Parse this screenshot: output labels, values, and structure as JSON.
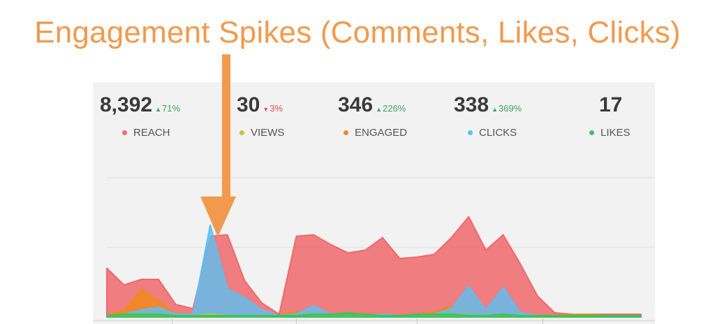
{
  "annotation": {
    "text": "Engagement Spikes (Comments, Likes, Clicks)",
    "color": "#F19A4E"
  },
  "stats": [
    {
      "value": "8,392",
      "change": "71%",
      "direction": "up",
      "label": "REACH",
      "color": "#F0696B"
    },
    {
      "value": "30",
      "change": "3%",
      "direction": "down",
      "label": "VIEWS",
      "color": "#C9C23A"
    },
    {
      "value": "346",
      "change": "226%",
      "direction": "up",
      "label": "ENGAGED",
      "color": "#F08A1C"
    },
    {
      "value": "338",
      "change": "369%",
      "direction": "up",
      "label": "CLICKS",
      "color": "#5BC0F2"
    },
    {
      "value": "17",
      "change": "",
      "direction": "",
      "label": "LIKES",
      "color": "#39C45A"
    }
  ],
  "chart_data": {
    "type": "area",
    "ylim": [
      0,
      100
    ],
    "grid": true,
    "x": [
      0,
      1,
      2,
      3,
      4,
      5,
      6,
      7,
      8,
      9,
      10,
      11,
      12,
      13,
      14,
      15,
      16,
      17,
      18,
      19,
      20,
      21,
      22,
      23,
      24,
      25,
      26,
      27,
      28,
      29,
      30,
      31
    ],
    "series": [
      {
        "name": "REACH",
        "color": "#F0696B",
        "values": [
          35,
          23,
          27,
          27,
          9,
          6,
          58,
          59,
          26,
          10,
          2,
          58,
          59,
          52,
          46,
          48,
          57,
          42,
          43,
          45,
          57,
          72,
          48,
          59,
          38,
          15,
          3,
          2,
          2,
          2,
          2,
          2
        ]
      },
      {
        "name": "ENGAGED",
        "color": "#F08A1C",
        "values": [
          1,
          5,
          20,
          12,
          2,
          1,
          3,
          2,
          1,
          1,
          1,
          4,
          3,
          2,
          2,
          2,
          1,
          1,
          2,
          3,
          8,
          5,
          3,
          2,
          1,
          1,
          1,
          2,
          2,
          1,
          1,
          1
        ]
      },
      {
        "name": "CLICKS",
        "color": "#5BC0F2",
        "values": [
          1,
          2,
          5,
          7,
          2,
          2,
          66,
          20,
          14,
          5,
          1,
          2,
          8,
          2,
          1,
          1,
          2,
          1,
          1,
          2,
          6,
          22,
          5,
          21,
          3,
          1,
          0,
          0,
          0,
          0,
          0,
          0
        ]
      },
      {
        "name": "VIEWS",
        "color": "#C9C23A",
        "values": [
          1,
          1,
          1,
          1,
          1,
          1,
          2,
          1,
          1,
          1,
          1,
          1,
          1,
          1,
          1,
          1,
          1,
          1,
          1,
          1,
          1,
          1,
          1,
          1,
          1,
          1,
          1,
          1,
          1,
          1,
          1,
          1
        ]
      },
      {
        "name": "LIKES",
        "color": "#39C45A",
        "values": [
          1,
          2,
          2,
          2,
          1,
          1,
          1,
          1,
          1,
          1,
          1,
          1,
          2,
          2,
          3,
          2,
          1,
          1,
          2,
          2,
          2,
          1,
          1,
          2,
          1,
          1,
          1,
          1,
          1,
          1,
          1,
          1
        ]
      }
    ]
  }
}
